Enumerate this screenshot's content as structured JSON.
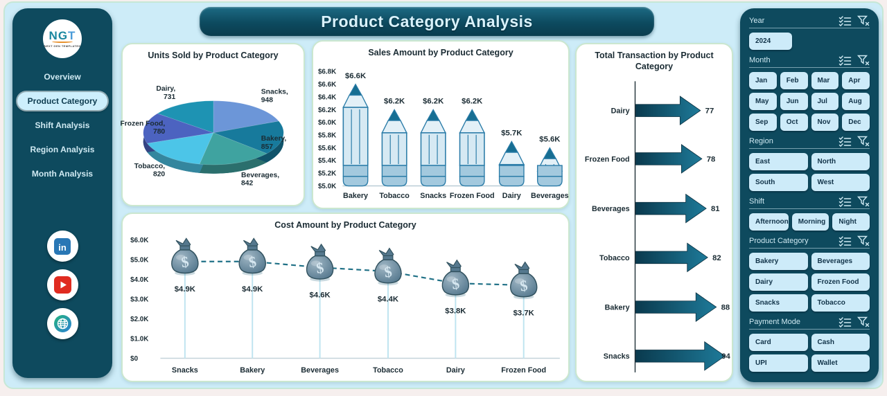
{
  "app": {
    "title": "Product Category Analysis"
  },
  "sidebar": {
    "logo": {
      "text": "NGT",
      "subtext": "NEXT GEN TEMPLATES"
    },
    "items": [
      {
        "label": "Overview",
        "active": false
      },
      {
        "label": "Product Category",
        "active": true
      },
      {
        "label": "Shift Analysis",
        "active": false
      },
      {
        "label": "Region Analysis",
        "active": false
      },
      {
        "label": "Month Analysis",
        "active": false
      }
    ],
    "social": [
      "linkedin",
      "youtube",
      "website"
    ]
  },
  "filters": {
    "sections": [
      {
        "label": "Year",
        "cols": 3,
        "options": [
          "2024"
        ]
      },
      {
        "label": "Month",
        "cols": 4,
        "options": [
          "Jan",
          "Feb",
          "Mar",
          "Apr",
          "May",
          "Jun",
          "Jul",
          "Aug",
          "Sep",
          "Oct",
          "Nov",
          "Dec"
        ]
      },
      {
        "label": "Region",
        "cols": 2,
        "options": [
          "East",
          "North",
          "South",
          "West"
        ]
      },
      {
        "label": "Shift",
        "cols": 3,
        "options": [
          "Afternoon",
          "Morning",
          "Night"
        ]
      },
      {
        "label": "Product Category",
        "cols": 2,
        "options": [
          "Bakery",
          "Beverages",
          "Dairy",
          "Frozen Food",
          "Snacks",
          "Tobacco"
        ]
      },
      {
        "label": "Payment Mode",
        "cols": 2,
        "options": [
          "Card",
          "Cash",
          "UPI",
          "Wallet"
        ]
      }
    ]
  },
  "chart_data": [
    {
      "type": "pie",
      "variant": "3d",
      "title": "Units Sold by Product Category",
      "categories": [
        "Snacks",
        "Bakery",
        "Beverages",
        "Tobacco",
        "Frozen Food",
        "Dairy"
      ],
      "values": [
        948,
        857,
        842,
        820,
        780,
        731
      ],
      "colors": [
        "#6C96D8",
        "#177A9C",
        "#3FA3A0",
        "#4CC5E8",
        "#4C63C0",
        "#1E93B3"
      ],
      "legend": "none",
      "label_format": "category, value"
    },
    {
      "type": "bar",
      "variant": "pencil",
      "title": "Sales Amount by Product Category",
      "categories": [
        "Bakery",
        "Tobacco",
        "Snacks",
        "Frozen Food",
        "Dairy",
        "Beverages"
      ],
      "values": [
        6.6,
        6.2,
        6.2,
        6.2,
        5.7,
        5.6
      ],
      "value_labels": [
        "$6.6K",
        "$6.2K",
        "$6.2K",
        "$6.2K",
        "$5.7K",
        "$5.6K"
      ],
      "ylim": [
        5.0,
        6.8
      ],
      "yticks": [
        "$5.0K",
        "$5.2K",
        "$5.4K",
        "$5.6K",
        "$5.8K",
        "$6.0K",
        "$6.2K",
        "$6.4K",
        "$6.6K",
        "$6.8K"
      ],
      "xlabel": "",
      "ylabel": "",
      "grid": false
    },
    {
      "type": "line",
      "variant": "money-bag",
      "line_style": "dashed",
      "title": "Cost Amount by Product Category",
      "categories": [
        "Snacks",
        "Bakery",
        "Beverages",
        "Tobacco",
        "Dairy",
        "Frozen Food"
      ],
      "values": [
        4.9,
        4.9,
        4.6,
        4.4,
        3.8,
        3.7
      ],
      "value_labels": [
        "$4.9K",
        "$4.9K",
        "$4.6K",
        "$4.4K",
        "$3.8K",
        "$3.7K"
      ],
      "ylim": [
        0,
        6
      ],
      "yticks": [
        "$0",
        "$1.0K",
        "$2.0K",
        "$3.0K",
        "$4.0K",
        "$5.0K",
        "$6.0K"
      ],
      "xlabel": "",
      "ylabel": "",
      "grid": false
    },
    {
      "type": "bar",
      "variant": "arrow",
      "orientation": "horizontal",
      "title": "Total Transaction by Product Category",
      "categories": [
        "Dairy",
        "Frozen Food",
        "Beverages",
        "Tobacco",
        "Bakery",
        "Snacks"
      ],
      "values": [
        77,
        78,
        81,
        82,
        88,
        94
      ],
      "xlabel": "",
      "ylabel": "",
      "grid": false
    }
  ],
  "colors": {
    "panel": "#0E4A5E",
    "board_bg": "#CDECF8",
    "card_border": "#CBE7CF",
    "button_bg": "#CDEBF9",
    "button_text": "#113349",
    "banner_text": "#D9F2FC",
    "pencil_body": "#D6E9F3",
    "pencil_tip": "#176E92",
    "pencil_outline": "#2B7CA8",
    "pencil_band": "#A3C9DE",
    "bag_dark": "#55788E",
    "bag_light": "#9FB6C4",
    "dash_line": "#1F7086",
    "drop_line": "#BFE4F0",
    "arrow_dark": "#0A3A4E",
    "arrow_light": "#1E7A99",
    "chart_text": "#1A2B33"
  }
}
